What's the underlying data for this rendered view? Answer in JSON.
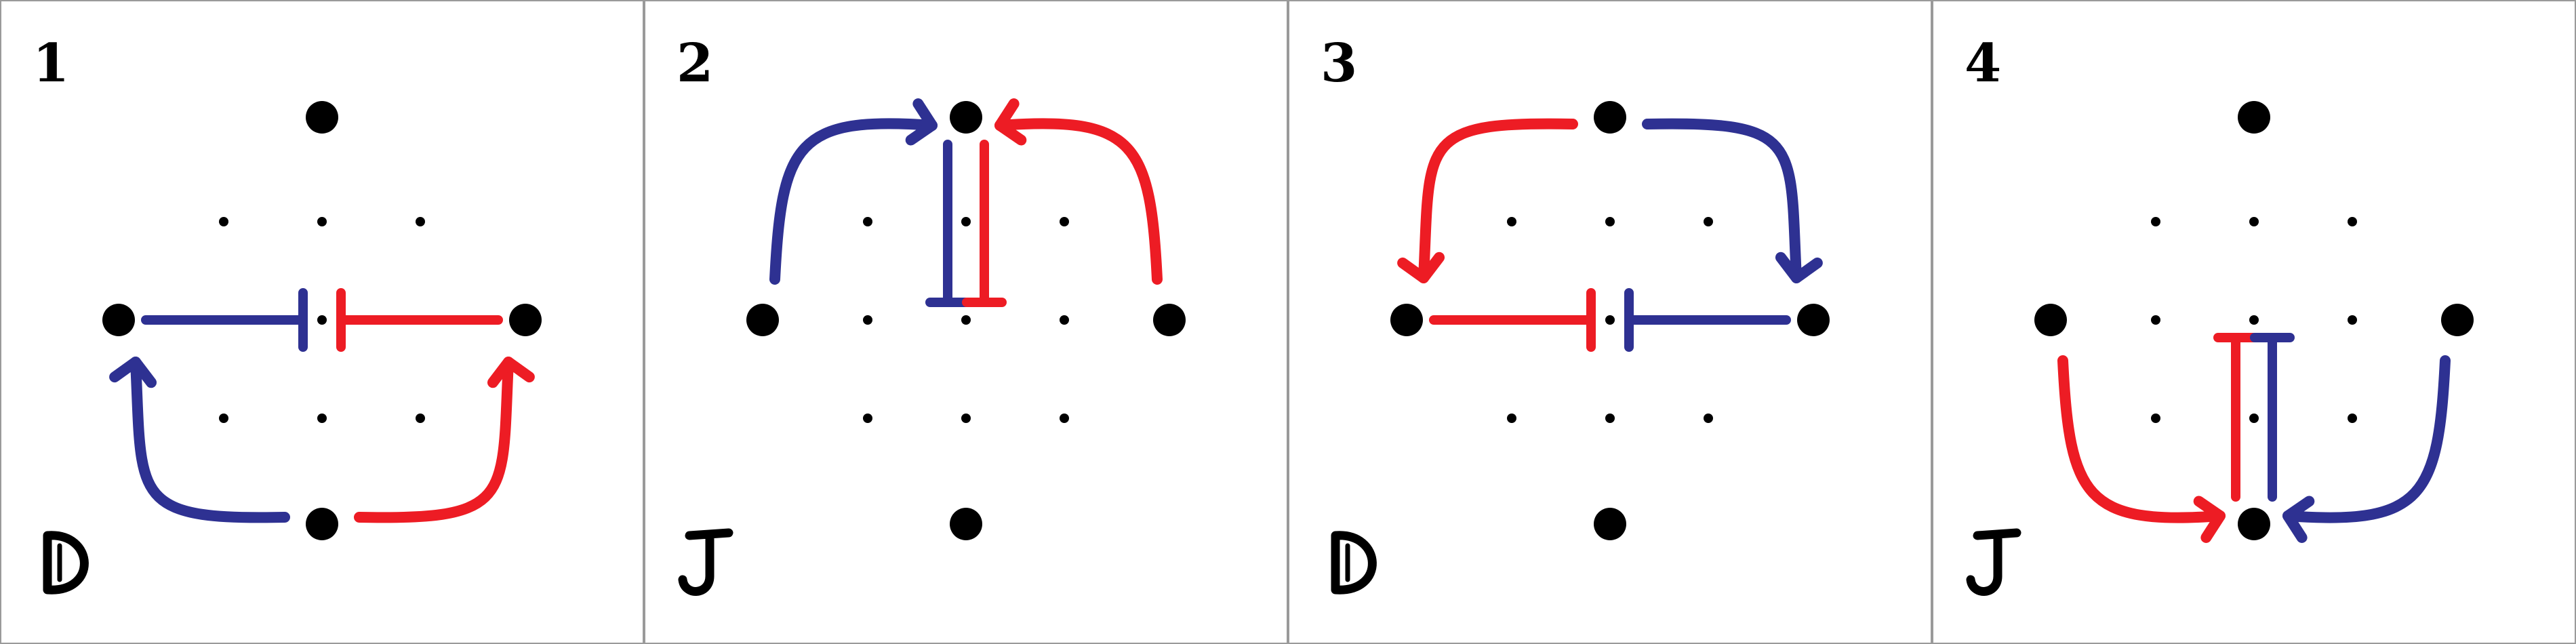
{
  "colors": {
    "blue": "#2e3192",
    "red": "#ed1c24",
    "black": "#000000",
    "frame": "#9a9a9a"
  },
  "panels": [
    {
      "number": "1",
      "letter": "D",
      "arcs": [
        {
          "from": "bottom",
          "to": "left",
          "color": "blue"
        },
        {
          "from": "bottom",
          "to": "right",
          "color": "red"
        }
      ],
      "bars": [
        {
          "from": "left",
          "toward": "center",
          "color": "blue"
        },
        {
          "from": "right",
          "toward": "center",
          "color": "red"
        }
      ]
    },
    {
      "number": "2",
      "letter": "J",
      "arcs": [
        {
          "from": "left",
          "to": "top",
          "color": "blue"
        },
        {
          "from": "right",
          "to": "top",
          "color": "red"
        }
      ],
      "bars": [
        {
          "from": "top",
          "toward": "center",
          "color": "blue",
          "side": "left"
        },
        {
          "from": "top",
          "toward": "center",
          "color": "red",
          "side": "right"
        }
      ]
    },
    {
      "number": "3",
      "letter": "D",
      "arcs": [
        {
          "from": "top",
          "to": "left",
          "color": "red"
        },
        {
          "from": "top",
          "to": "right",
          "color": "blue"
        }
      ],
      "bars": [
        {
          "from": "left",
          "toward": "center",
          "color": "red"
        },
        {
          "from": "right",
          "toward": "center",
          "color": "blue"
        }
      ]
    },
    {
      "number": "4",
      "letter": "J",
      "arcs": [
        {
          "from": "left",
          "to": "bottom",
          "color": "red"
        },
        {
          "from": "right",
          "to": "bottom",
          "color": "blue"
        }
      ],
      "bars": [
        {
          "from": "bottom",
          "toward": "center",
          "color": "red",
          "side": "left"
        },
        {
          "from": "bottom",
          "toward": "center",
          "color": "blue",
          "side": "right"
        }
      ]
    }
  ]
}
